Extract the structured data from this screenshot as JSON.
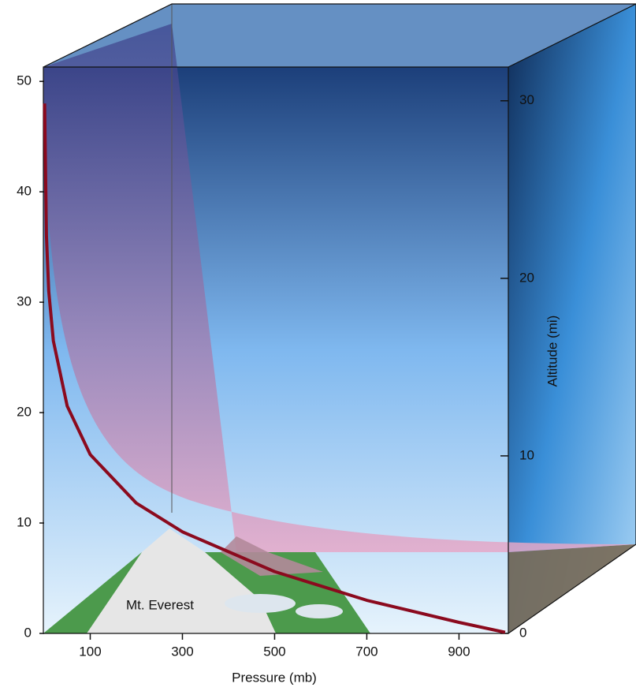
{
  "chart_data": {
    "type": "line",
    "x_label": "Pressure (mb)",
    "y2_label": "Altitude (mi)",
    "annotation": "Mt. Everest",
    "x": [
      1,
      5,
      10,
      20,
      50,
      100,
      200,
      300,
      500,
      700,
      900,
      1000
    ],
    "series": [
      {
        "color": "#8b0a1e",
        "values": [
          48,
          36,
          31,
          26.5,
          20.6,
          16.2,
          11.8,
          9.2,
          5.6,
          3,
          1,
          0.1
        ]
      }
    ],
    "xlim": [
      0,
      1007
    ],
    "xticks": [
      100,
      300,
      500,
      700,
      900
    ],
    "ylim": [
      0,
      51.3
    ],
    "yticks": [
      0,
      10,
      20,
      30,
      40,
      50
    ],
    "y2lim": [
      0,
      31.9
    ],
    "y2ticks": [
      0,
      10,
      20,
      30
    ]
  }
}
